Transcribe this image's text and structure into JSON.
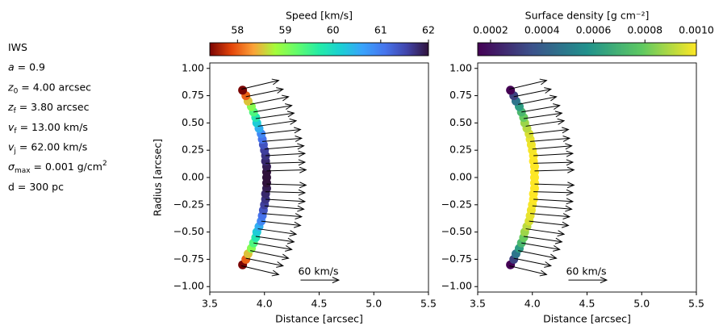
{
  "parameters": [
    {
      "text": "IWS"
    },
    {
      "symbol": "a",
      "text": "= 0.9"
    },
    {
      "symbol": "z",
      "sub": "0",
      "text": "= 4.00 arcsec"
    },
    {
      "symbol": "z",
      "sub": "f",
      "text": "= 3.80 arcsec"
    },
    {
      "symbol": "v",
      "sub": "f",
      "text": "= 13.00 km/s"
    },
    {
      "symbol": "v",
      "sub": "j",
      "text": "= 62.00 km/s"
    },
    {
      "symbol": "σ",
      "sub": "max",
      "text": "= 0.001 g/cm",
      "sup": "2"
    },
    {
      "text": "d = 300 pc"
    }
  ],
  "chart_data": [
    {
      "type": "scatter",
      "colorbar": {
        "label": "Speed [km/s]",
        "colormap": "turbo_r",
        "lim": [
          57.42,
          62
        ],
        "ticks": [
          58,
          59,
          60,
          61,
          62
        ],
        "position": "top"
      },
      "xlabel": "Distance [arcsec]",
      "ylabel": "Radius [arcsec]",
      "xlim": [
        3.5,
        5.5
      ],
      "ylim": [
        -1.05,
        1.05
      ],
      "xticks": [
        3.5,
        {
          "value": 4,
          "label": "4.0"
        },
        4.5,
        {
          "value": 5,
          "label": "5.0"
        },
        5.5
      ],
      "yticks": [
        {
          "value": -1,
          "label": "−1.00"
        },
        {
          "value": -0.75,
          "label": "−0.75"
        },
        {
          "value": -0.5,
          "label": "−0.50"
        },
        {
          "value": -0.25,
          "label": "−0.25"
        },
        {
          "value": 0,
          "label": "0.00"
        },
        0.25,
        {
          "value": 0.5,
          "label": "0.50"
        },
        0.75,
        {
          "value": 1,
          "label": "1.00"
        }
      ],
      "x": [
        3.8,
        3.83,
        3.85,
        3.88,
        3.9,
        3.92,
        3.93,
        3.95,
        3.97,
        3.98,
        3.99,
        4.0,
        4.01,
        4.01,
        4.02,
        4.02,
        4.02,
        4.02,
        4.02,
        4.01,
        4.01,
        4.0,
        3.99,
        3.98,
        3.97,
        3.95,
        3.93,
        3.92,
        3.9,
        3.88,
        3.85,
        3.83,
        3.8
      ],
      "y": [
        -0.8,
        -0.75,
        -0.7,
        -0.65,
        -0.6,
        -0.55,
        -0.5,
        -0.45,
        -0.4,
        -0.35,
        -0.3,
        -0.25,
        -0.2,
        -0.15,
        -0.1,
        -0.05,
        0,
        0.05,
        0.1,
        0.15,
        0.2,
        0.25,
        0.3,
        0.35,
        0.4,
        0.45,
        0.5,
        0.55,
        0.6,
        0.65,
        0.7,
        0.75,
        0.8
      ],
      "color_values": [
        57.4,
        58.0,
        58.5,
        59.0,
        59.4,
        59.8,
        60.2,
        60.5,
        60.9,
        61.1,
        61.4,
        61.6,
        61.7,
        61.8,
        61.9,
        62.0,
        62.0,
        62.0,
        61.9,
        61.8,
        61.7,
        61.6,
        61.4,
        61.1,
        60.9,
        60.5,
        60.2,
        59.8,
        59.4,
        59.0,
        58.5,
        58.0,
        57.4
      ],
      "arrows": {
        "x": [
          3.79,
          3.83,
          3.87,
          3.9,
          3.92,
          3.94,
          3.97,
          3.98,
          4.0,
          4.01,
          4.01,
          4.02,
          4.02,
          4.01,
          4.01,
          4.0,
          3.98,
          3.97,
          3.94,
          3.92,
          3.9,
          3.87,
          3.83,
          3.79
        ],
        "y": [
          -0.81,
          -0.74,
          -0.67,
          -0.6,
          -0.54,
          -0.47,
          -0.4,
          -0.33,
          -0.26,
          -0.2,
          -0.13,
          -0.06,
          0.06,
          0.13,
          0.2,
          0.26,
          0.33,
          0.4,
          0.47,
          0.54,
          0.6,
          0.67,
          0.74,
          0.81
        ],
        "dx": [
          0.34,
          0.34,
          0.35,
          0.35,
          0.35,
          0.35,
          0.36,
          0.36,
          0.36,
          0.36,
          0.36,
          0.36,
          0.36,
          0.36,
          0.36,
          0.36,
          0.36,
          0.36,
          0.35,
          0.35,
          0.35,
          0.35,
          0.34,
          0.34
        ],
        "dy": [
          -0.08,
          -0.07,
          -0.07,
          -0.06,
          -0.05,
          -0.05,
          -0.04,
          -0.03,
          -0.03,
          -0.02,
          -0.01,
          -0.01,
          0.01,
          0.01,
          0.02,
          0.03,
          0.03,
          0.04,
          0.05,
          0.05,
          0.06,
          0.07,
          0.07,
          0.08
        ]
      },
      "scale_arrow": {
        "label": "60 km/s",
        "x": 4.33,
        "y": -0.94,
        "dx": 0.35
      }
    },
    {
      "type": "scatter",
      "colorbar": {
        "label": "Surface density [g cm⁻²]",
        "colormap": "viridis",
        "lim": [
          0.00015,
          0.001
        ],
        "ticks": [
          0.0002,
          0.0004,
          0.0006,
          0.0008,
          {
            "value": 0.001,
            "label": "0.0010"
          }
        ],
        "position": "top"
      },
      "xlabel": "Distance [arcsec]",
      "xlim": [
        3.5,
        5.5
      ],
      "ylim": [
        -1.05,
        1.05
      ],
      "xticks": [
        3.5,
        {
          "value": 4,
          "label": "4.0"
        },
        4.5,
        {
          "value": 5,
          "label": "5.0"
        },
        5.5
      ],
      "yticks": [
        {
          "value": -1,
          "label": "−1.00"
        },
        {
          "value": -0.75,
          "label": "−0.75"
        },
        {
          "value": -0.5,
          "label": "−0.50"
        },
        {
          "value": -0.25,
          "label": "−0.25"
        },
        {
          "value": 0,
          "label": "0.00"
        },
        0.25,
        {
          "value": 0.5,
          "label": "0.50"
        },
        0.75,
        {
          "value": 1,
          "label": "1.00"
        }
      ],
      "x": [
        3.8,
        3.83,
        3.85,
        3.88,
        3.9,
        3.92,
        3.93,
        3.95,
        3.97,
        3.98,
        3.99,
        4.0,
        4.01,
        4.01,
        4.02,
        4.02,
        4.02,
        4.02,
        4.02,
        4.01,
        4.01,
        4.0,
        3.99,
        3.98,
        3.97,
        3.95,
        3.93,
        3.92,
        3.9,
        3.88,
        3.85,
        3.83,
        3.8
      ],
      "y": [
        -0.8,
        -0.75,
        -0.7,
        -0.65,
        -0.6,
        -0.55,
        -0.5,
        -0.45,
        -0.4,
        -0.35,
        -0.3,
        -0.25,
        -0.2,
        -0.15,
        -0.1,
        -0.05,
        0,
        0.05,
        0.1,
        0.15,
        0.2,
        0.25,
        0.3,
        0.35,
        0.4,
        0.45,
        0.5,
        0.55,
        0.6,
        0.65,
        0.7,
        0.75,
        0.8
      ],
      "color_values": [
        0.00015,
        0.00032,
        0.00048,
        0.00062,
        0.00072,
        0.0008,
        0.00087,
        0.00091,
        0.00095,
        0.00097,
        0.00098,
        0.00099,
        0.001,
        0.001,
        0.001,
        0.001,
        0.001,
        0.001,
        0.001,
        0.001,
        0.001,
        0.00099,
        0.00098,
        0.00097,
        0.00095,
        0.00091,
        0.00087,
        0.0008,
        0.00072,
        0.00062,
        0.00048,
        0.00032,
        0.00015
      ],
      "arrows": {
        "x": [
          3.79,
          3.83,
          3.87,
          3.9,
          3.92,
          3.94,
          3.97,
          3.98,
          4.0,
          4.01,
          4.01,
          4.02,
          4.02,
          4.01,
          4.01,
          4.0,
          3.98,
          3.97,
          3.94,
          3.92,
          3.9,
          3.87,
          3.83,
          3.79
        ],
        "y": [
          -0.81,
          -0.74,
          -0.67,
          -0.6,
          -0.54,
          -0.47,
          -0.4,
          -0.33,
          -0.26,
          -0.2,
          -0.13,
          -0.06,
          0.06,
          0.13,
          0.2,
          0.26,
          0.33,
          0.4,
          0.47,
          0.54,
          0.6,
          0.67,
          0.74,
          0.81
        ],
        "dx": [
          0.34,
          0.34,
          0.35,
          0.35,
          0.35,
          0.35,
          0.36,
          0.36,
          0.36,
          0.36,
          0.36,
          0.36,
          0.36,
          0.36,
          0.36,
          0.36,
          0.36,
          0.36,
          0.35,
          0.35,
          0.35,
          0.35,
          0.34,
          0.34
        ],
        "dy": [
          -0.08,
          -0.07,
          -0.07,
          -0.06,
          -0.05,
          -0.05,
          -0.04,
          -0.03,
          -0.03,
          -0.02,
          -0.01,
          -0.01,
          0.01,
          0.01,
          0.02,
          0.03,
          0.03,
          0.04,
          0.05,
          0.05,
          0.06,
          0.07,
          0.07,
          0.08
        ]
      },
      "scale_arrow": {
        "label": "60 km/s",
        "x": 4.33,
        "y": -0.94,
        "dx": 0.35
      }
    }
  ]
}
